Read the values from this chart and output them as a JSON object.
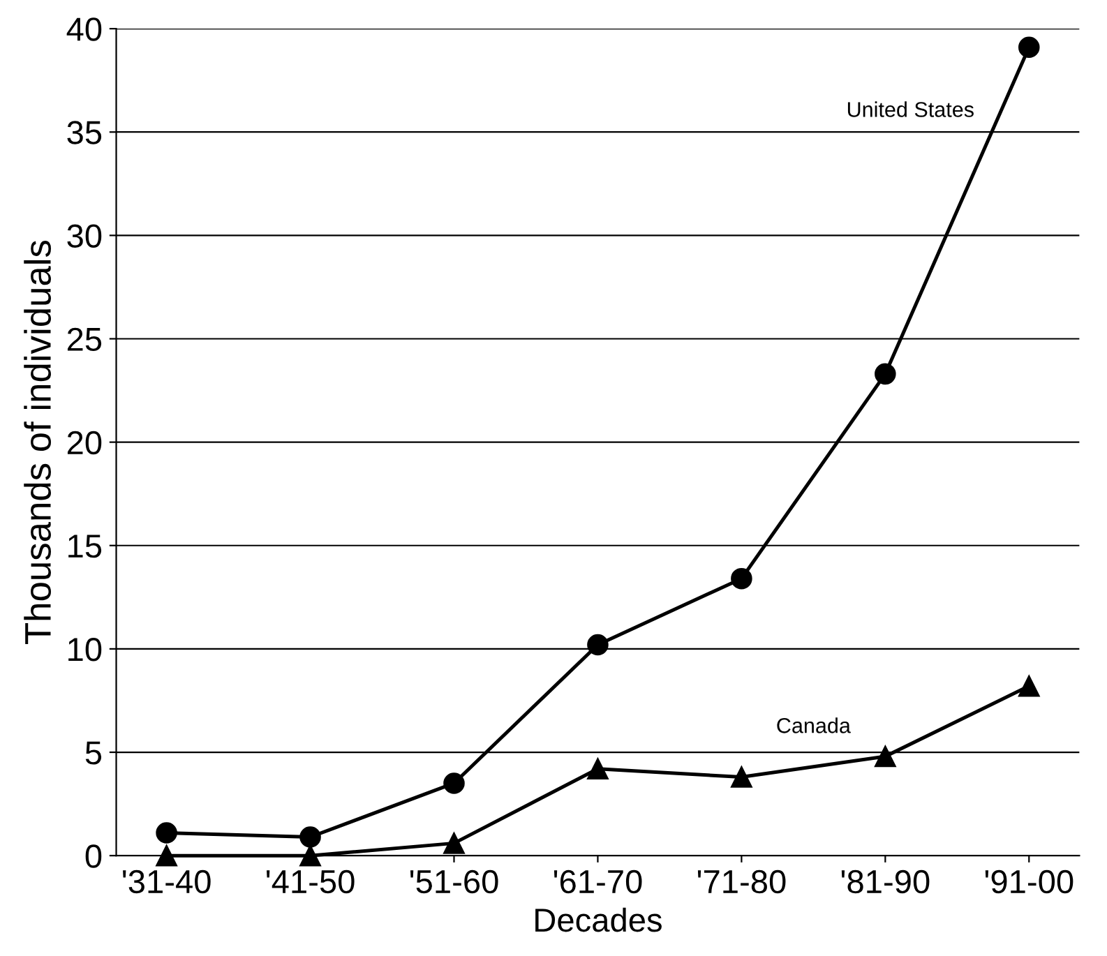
{
  "chart_data": {
    "type": "line",
    "xlabel": "Decades",
    "ylabel": "Thousands of individuals",
    "categories": [
      "'31-40",
      "'41-50",
      "'51-60",
      "'61-70",
      "'71-80",
      "'81-90",
      "'91-00"
    ],
    "series": [
      {
        "name": "United States",
        "color": "#000000",
        "marker": "circle",
        "values": [
          1.1,
          0.9,
          3.5,
          10.2,
          13.4,
          23.3,
          39.1
        ]
      },
      {
        "name": "Canada",
        "color": "#000000",
        "marker": "triangle",
        "values": [
          0,
          0,
          0.6,
          4.2,
          3.8,
          4.8,
          8.2
        ]
      }
    ],
    "ylim": [
      0,
      40
    ],
    "yticks": [
      0,
      5,
      10,
      15,
      20,
      25,
      30,
      35,
      40
    ],
    "grid": "y",
    "line_style": "solid",
    "legend": false
  }
}
